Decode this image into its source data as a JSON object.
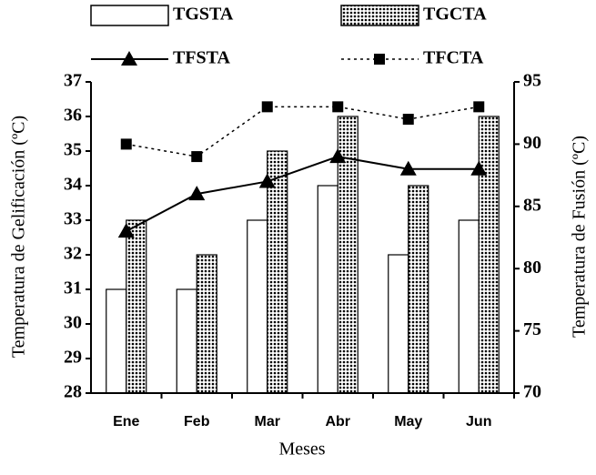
{
  "chart_data": {
    "type": "bar",
    "x_label": "Meses",
    "y_label": "Temperatura de Gelificación (ºC)",
    "y2_label": "Temperatura de Fusión (ºC)",
    "categories": [
      "Ene",
      "Feb",
      "Mar",
      "Abr",
      "May",
      "Jun"
    ],
    "series": [
      {
        "name": "TGSTA",
        "type": "bar",
        "color": "#ffffff",
        "values": [
          31,
          31,
          33,
          34,
          32,
          33
        ]
      },
      {
        "name": "TGCTA",
        "type": "bar",
        "color": "#000000",
        "pattern": "dots",
        "values": [
          33,
          32,
          35,
          36,
          34,
          36
        ]
      },
      {
        "name": "TFSTA",
        "type": "line",
        "axis": "y2",
        "color": "#000000",
        "marker": "triangle",
        "linestyle": "solid",
        "values": [
          83,
          86,
          87,
          89,
          88,
          88
        ]
      },
      {
        "name": "TFCTA",
        "type": "line",
        "axis": "y2",
        "color": "#000000",
        "marker": "square",
        "linestyle": "dotted",
        "values": [
          90,
          89,
          93,
          93,
          92,
          93
        ]
      }
    ],
    "ylim": [
      28,
      37
    ],
    "yticks": [
      28,
      29,
      30,
      31,
      32,
      33,
      34,
      35,
      36,
      37
    ],
    "y2lim": [
      70,
      95
    ],
    "y2ticks": [
      70,
      75,
      80,
      85,
      90,
      95
    ]
  }
}
